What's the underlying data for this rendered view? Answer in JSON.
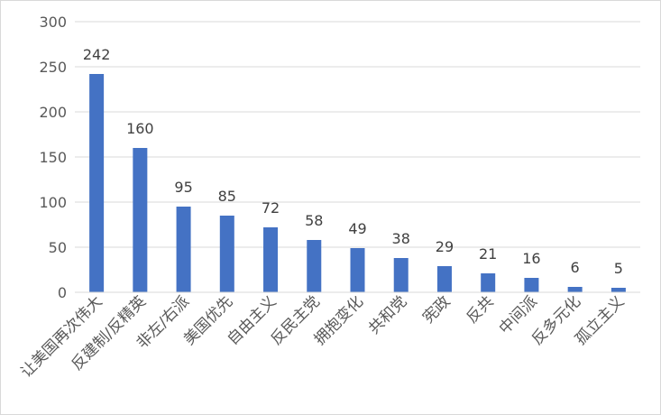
{
  "chart_data": {
    "type": "bar",
    "title": "",
    "xlabel": "",
    "ylabel": "",
    "ylim": [
      0,
      300
    ],
    "yticks": [
      0,
      50,
      100,
      150,
      200,
      250,
      300
    ],
    "grid": true,
    "legend": "none",
    "bar_color": "#4472C4",
    "categories": [
      "让美国再次伟大",
      "反建制/反精英",
      "非左/右派",
      "美国优先",
      "自由主义",
      "反民主党",
      "拥抱变化",
      "共和党",
      "宪政",
      "反共",
      "中间派",
      "反多元化",
      "孤立主义"
    ],
    "values": [
      242,
      160,
      95,
      85,
      72,
      58,
      49,
      38,
      29,
      21,
      16,
      6,
      5
    ],
    "data_labels": [
      "242",
      "160",
      "95",
      "85",
      "72",
      "58",
      "49",
      "38",
      "29",
      "21",
      "16",
      "6",
      "5"
    ],
    "ytick_labels": [
      "0",
      "50",
      "100",
      "150",
      "200",
      "250",
      "300"
    ]
  }
}
